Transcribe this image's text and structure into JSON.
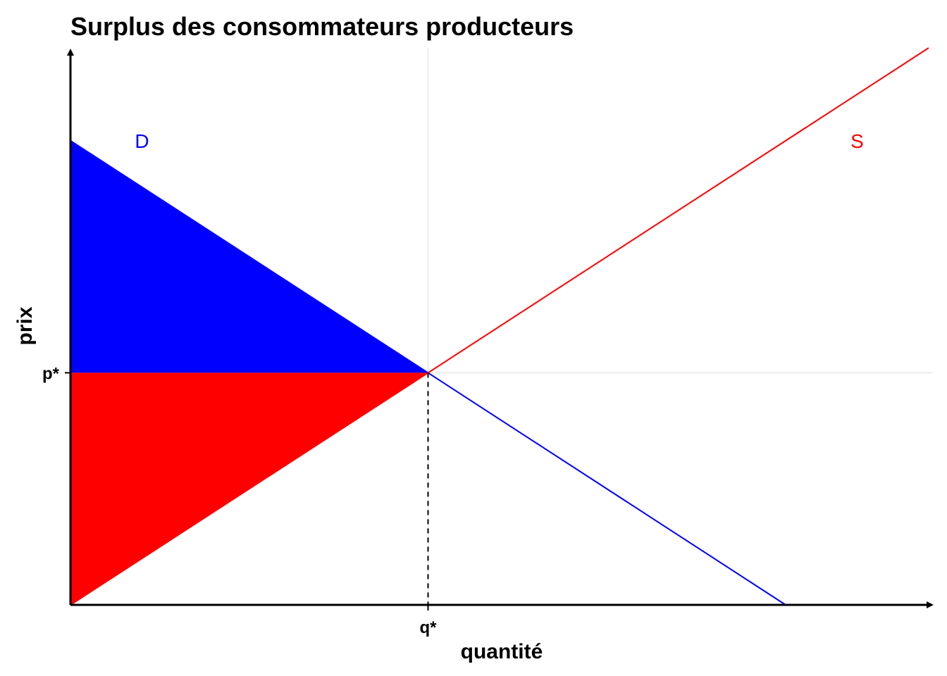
{
  "chart_data": {
    "type": "line",
    "title": "Surplus des consommateurs producteurs",
    "xlabel": "quantité",
    "ylabel": "prix",
    "xlim": [
      0,
      12
    ],
    "ylim": [
      0,
      12
    ],
    "grid": false,
    "x_ticks": [
      {
        "value": 5,
        "label": "q*"
      }
    ],
    "y_ticks": [
      {
        "value": 5,
        "label": "p*"
      }
    ],
    "equilibrium": {
      "q": 5,
      "p": 5
    },
    "series": [
      {
        "name": "D",
        "color": "#0000FF",
        "x": [
          0,
          10
        ],
        "y": [
          10,
          0
        ]
      },
      {
        "name": "S",
        "color": "#FF0000",
        "x": [
          0,
          12
        ],
        "y": [
          0,
          12
        ]
      }
    ],
    "areas": [
      {
        "color": "#0000FF",
        "x": [
          0,
          5,
          0
        ],
        "y": [
          10,
          5,
          5
        ]
      },
      {
        "color": "#FF0000",
        "x": [
          0,
          5,
          0
        ],
        "y": [
          5,
          5,
          0
        ]
      }
    ]
  }
}
